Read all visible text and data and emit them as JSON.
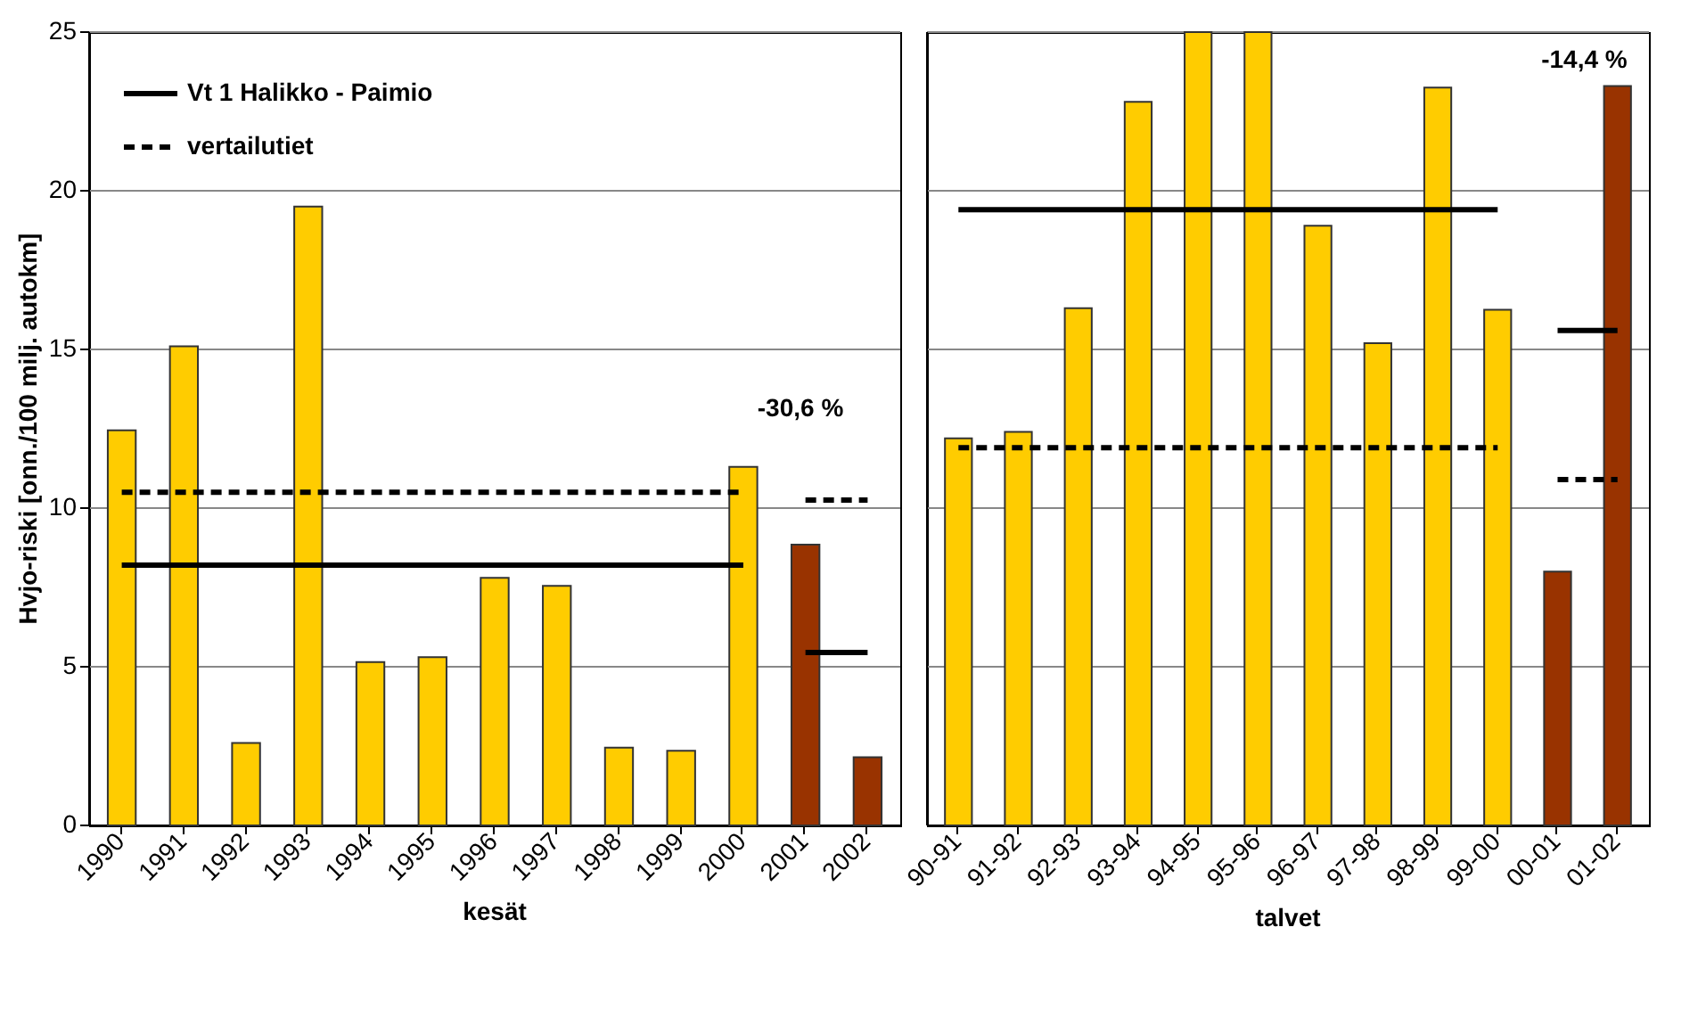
{
  "chart_data": [
    {
      "type": "bar",
      "ylabel": "Hvjo-riski [onn./100 milj. autokm]",
      "xlabel": "kesät",
      "categories": [
        "1990",
        "1991",
        "1992",
        "1993",
        "1994",
        "1995",
        "1996",
        "1997",
        "1998",
        "1999",
        "2000",
        "2001",
        "2002"
      ],
      "ylim": [
        0,
        25
      ],
      "yticks": [
        0,
        5,
        10,
        15,
        20,
        25
      ],
      "grid": "y",
      "legend": "top left",
      "annotations": [
        "-30,6 %"
      ],
      "series": [
        {
          "values": [
            12.45,
            15.1,
            2.6,
            19.5,
            5.15,
            5.3,
            7.8,
            7.55,
            2.45,
            2.35,
            11.3,
            8.85,
            2.15
          ],
          "colors": [
            "#ffcc00",
            "#ffcc00",
            "#ffcc00",
            "#ffcc00",
            "#ffcc00",
            "#ffcc00",
            "#ffcc00",
            "#ffcc00",
            "#ffcc00",
            "#ffcc00",
            "#ffcc00",
            "#993300",
            "#993300"
          ]
        },
        {
          "type": "line",
          "name": "Vt 1 Halikko - Paimio",
          "color": "#000000",
          "line_style": "solid",
          "values": [
            8.2,
            8.2,
            8.2,
            8.2,
            8.2,
            8.2,
            8.2,
            8.2,
            8.2,
            8.2,
            8.2,
            null,
            null
          ]
        },
        {
          "type": "line",
          "name": "vertailutiet",
          "color": "#000000",
          "line_style": "dashed",
          "values": [
            10.5,
            10.5,
            10.5,
            10.5,
            10.5,
            10.5,
            10.5,
            10.5,
            10.5,
            10.5,
            10.5,
            null,
            null
          ]
        },
        {
          "type": "line",
          "color": "#000000",
          "line_style": "solid",
          "values": [
            null,
            null,
            null,
            null,
            null,
            null,
            null,
            null,
            null,
            null,
            null,
            5.45,
            5.45
          ]
        },
        {
          "type": "line",
          "color": "#000000",
          "line_style": "dashed",
          "values": [
            null,
            null,
            null,
            null,
            null,
            null,
            null,
            null,
            null,
            null,
            null,
            10.25,
            10.25
          ]
        }
      ]
    },
    {
      "type": "bar",
      "xlabel": "talvet",
      "categories": [
        "90-91",
        "91-92",
        "92-93",
        "93-94",
        "94-95",
        "95-96",
        "96-97",
        "97-98",
        "98-99",
        "99-00",
        "00-01",
        "01-02"
      ],
      "ylim": [
        0,
        25
      ],
      "yticks": [
        0,
        5,
        10,
        15,
        20,
        25
      ],
      "grid": "y",
      "tick_labels": "x",
      "annotations": [
        "-14,4 %"
      ],
      "series": [
        {
          "values": [
            12.2,
            12.4,
            16.3,
            22.8,
            25,
            25,
            18.9,
            15.2,
            23.25,
            16.25,
            8.0,
            23.3
          ],
          "colors": [
            "#ffcc00",
            "#ffcc00",
            "#ffcc00",
            "#ffcc00",
            "#ffcc00",
            "#ffcc00",
            "#ffcc00",
            "#ffcc00",
            "#ffcc00",
            "#ffcc00",
            "#993300",
            "#993300"
          ]
        },
        {
          "type": "line",
          "color": "#000000",
          "line_style": "solid",
          "values": [
            19.4,
            19.4,
            19.4,
            19.4,
            19.4,
            19.4,
            19.4,
            19.4,
            19.4,
            19.4,
            null,
            null
          ]
        },
        {
          "type": "line",
          "color": "#000000",
          "line_style": "dashed",
          "values": [
            11.9,
            11.9,
            11.9,
            11.9,
            11.9,
            11.9,
            11.9,
            11.9,
            11.9,
            11.9,
            null,
            null
          ]
        },
        {
          "type": "line",
          "color": "#000000",
          "line_style": "solid",
          "values": [
            null,
            null,
            null,
            null,
            null,
            null,
            null,
            null,
            null,
            null,
            15.6,
            15.6
          ]
        },
        {
          "type": "line",
          "color": "#000000",
          "line_style": "dashed",
          "values": [
            null,
            null,
            null,
            null,
            null,
            null,
            null,
            null,
            null,
            null,
            10.9,
            10.9
          ]
        }
      ]
    }
  ]
}
